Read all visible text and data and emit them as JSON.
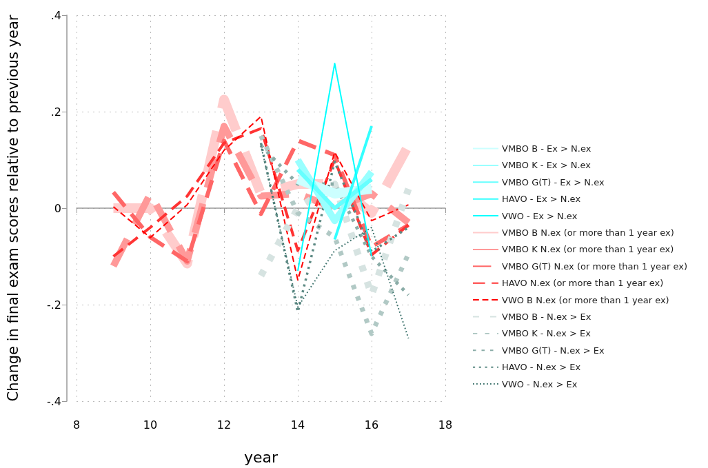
{
  "chart_data": {
    "type": "line",
    "xlabel": "year",
    "ylabel": "Change in final exam scores relative to previous year",
    "x": [
      9,
      10,
      11,
      12,
      13,
      14,
      15,
      16,
      17
    ],
    "xlim": [
      8,
      18
    ],
    "xticks": [
      8,
      10,
      12,
      14,
      16,
      18
    ],
    "ylim": [
      -0.4,
      0.4
    ],
    "yticks": [
      {
        "value": -0.4,
        "label": "-.4"
      },
      {
        "value": -0.2,
        "label": "-.2"
      },
      0,
      {
        "value": 0.2,
        "label": ".2"
      },
      {
        "value": 0.4,
        "label": ".4"
      }
    ],
    "grid": true,
    "legend": "right",
    "marker": "none",
    "series": [
      {
        "name": "VMBO B - Ex > N.ex",
        "color": "#ccffff",
        "line_style": "solid",
        "values": [
          null,
          null,
          null,
          null,
          null,
          0.06,
          0.03,
          0.04,
          null
        ]
      },
      {
        "name": "VMBO K - Ex > N.ex",
        "color": "#99ffff",
        "line_style": "solid",
        "values": [
          null,
          null,
          null,
          null,
          null,
          0.1,
          -0.026,
          0.075,
          null
        ]
      },
      {
        "name": "VMBO G(T) - Ex > N.ex",
        "color": "#66ffff",
        "line_style": "solid",
        "values": [
          null,
          null,
          null,
          null,
          null,
          0.08,
          0.0,
          0.06,
          null
        ]
      },
      {
        "name": "HAVO - Ex > N.ex",
        "color": "#33ffff",
        "line_style": "solid",
        "values": [
          null,
          null,
          null,
          null,
          null,
          null,
          -0.065,
          0.17,
          null
        ]
      },
      {
        "name": "VWO - Ex > N.ex",
        "color": "#00ffff",
        "line_style": "solid",
        "values": [
          null,
          null,
          null,
          null,
          null,
          -0.13,
          0.3,
          -0.1,
          null
        ]
      },
      {
        "name": "VMBO B N.ex (or more than 1 year ex)",
        "color": "#ffcccc",
        "line_style": "dashed",
        "values": [
          0.0,
          0.0,
          -0.115,
          0.225,
          0.03,
          0.05,
          0.05,
          -0.01,
          0.13
        ]
      },
      {
        "name": "VMBO K N.ex (or more than 1 year ex)",
        "color": "#ff9999",
        "line_style": "dashed",
        "values": [
          -0.12,
          0.03,
          -0.11,
          0.17,
          0.025,
          0.03,
          0.0,
          0.03,
          -0.03
        ]
      },
      {
        "name": "VMBO G(T) N.ex (or more than 1 year ex)",
        "color": "#ff6666",
        "line_style": "dashed",
        "values": [
          0.033,
          -0.06,
          -0.11,
          0.14,
          -0.012,
          0.14,
          0.11,
          -0.08,
          -0.035
        ]
      },
      {
        "name": "HAVO N.ex (or more than 1 year ex)",
        "color": "#ff3333",
        "line_style": "dashed",
        "values": [
          -0.1,
          -0.04,
          0.025,
          0.135,
          0.165,
          -0.088,
          0.1,
          -0.097,
          -0.035
        ]
      },
      {
        "name": "VWO B N.ex (or more than 1 year ex)",
        "color": "#ff0000",
        "line_style": "dashed",
        "values": [
          0.003,
          -0.061,
          0.007,
          0.12,
          0.19,
          -0.149,
          0.116,
          -0.026,
          0.007
        ]
      },
      {
        "name": "VMBO B - N.ex > Ex",
        "color": "#d6e3e1",
        "line_style": "dotted",
        "values": [
          null,
          null,
          null,
          null,
          -0.14,
          0.0,
          0.05,
          -0.18,
          0.04
        ]
      },
      {
        "name": "VMBO K - N.ex > Ex",
        "color": "#b1c9c5",
        "line_style": "dotted",
        "values": [
          null,
          null,
          null,
          null,
          0.15,
          -0.01,
          -0.06,
          -0.26,
          -0.095
        ]
      },
      {
        "name": "VMBO G(T) - N.ex > Ex",
        "color": "#8aaca7",
        "line_style": "dotted",
        "values": [
          null,
          null,
          null,
          null,
          0.13,
          0.05,
          0.05,
          -0.1,
          -0.18
        ]
      },
      {
        "name": "HAVO - N.ex > Ex",
        "color": "#5d8a84",
        "line_style": "dotted",
        "values": [
          null,
          null,
          null,
          null,
          0.135,
          -0.215,
          0.096,
          -0.09,
          -0.04
        ]
      },
      {
        "name": "VWO - N.ex > Ex",
        "color": "#3f746e",
        "line_style": "dotted",
        "values": [
          null,
          null,
          null,
          null,
          0.13,
          -0.205,
          -0.088,
          -0.04,
          -0.27
        ]
      }
    ]
  }
}
